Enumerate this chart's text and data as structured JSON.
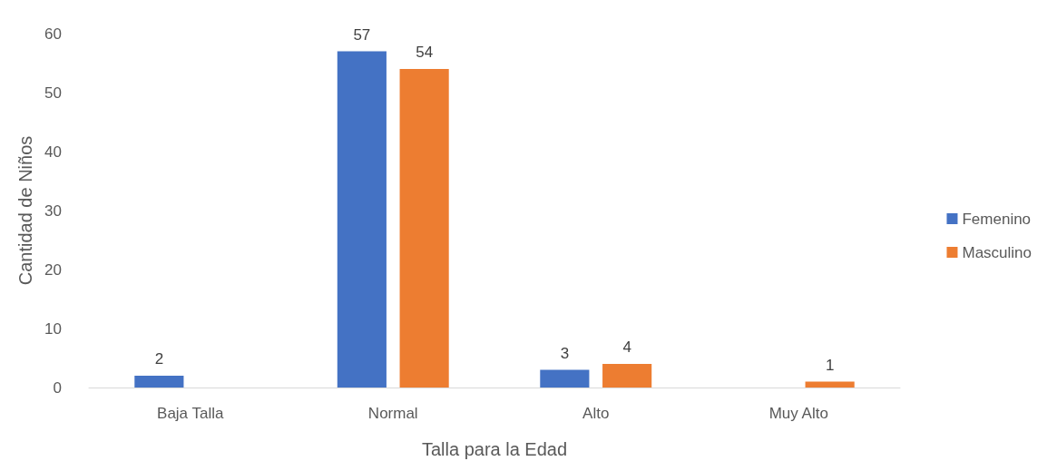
{
  "chart_data": {
    "type": "bar",
    "xlabel": "Talla para la Edad",
    "ylabel": "Cantidad de Niños",
    "categories": [
      "Baja Talla",
      "Normal",
      "Alto",
      "Muy Alto"
    ],
    "series": [
      {
        "name": "Femenino",
        "color": "#4472c4",
        "values": [
          2,
          57,
          3,
          null
        ]
      },
      {
        "name": "Masculino",
        "color": "#ed7d31",
        "values": [
          null,
          54,
          4,
          1
        ]
      }
    ],
    "ylim": [
      0,
      60
    ],
    "yticks": [
      0,
      10,
      20,
      30,
      40,
      50,
      60
    ],
    "grid": false,
    "legend": "right",
    "data_labels": true
  }
}
